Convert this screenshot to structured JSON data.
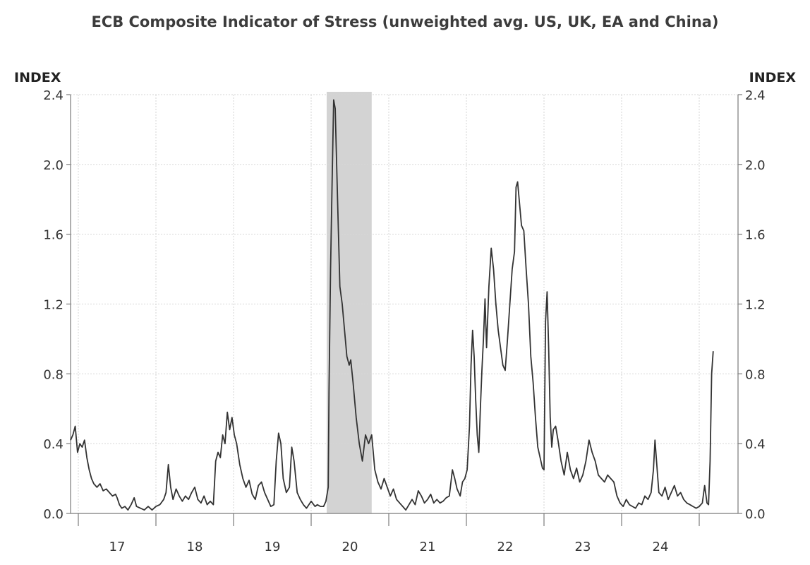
{
  "chart_data": {
    "type": "line",
    "title": "ECB Composite Indicator of Stress (unweighted avg. US, UK, EA and China)",
    "ylabel_left": "INDEX",
    "ylabel_right": "INDEX",
    "ylim": [
      0,
      2.4
    ],
    "yticks": [
      "0.0",
      "0.4",
      "0.8",
      "1.2",
      "1.6",
      "2.0",
      "2.4"
    ],
    "xlim": [
      2016.4,
      2025.0
    ],
    "x_tick_positions": [
      2016.5,
      2017.5,
      2018.5,
      2019.5,
      2020.5,
      2021.5,
      2022.5,
      2023.5,
      2024.5
    ],
    "x_category_labels": [
      "17",
      "18",
      "19",
      "20",
      "21",
      "22",
      "23",
      "24"
    ],
    "x_label_positions": [
      2017.0,
      2018.0,
      2019.0,
      2020.0,
      2021.0,
      2022.0,
      2023.0,
      2024.0
    ],
    "grid": true,
    "shaded_region": [
      2019.7,
      2020.28
    ],
    "series": [
      {
        "points": [
          [
            2016.4,
            0.42
          ],
          [
            2016.43,
            0.45
          ],
          [
            2016.46,
            0.5
          ],
          [
            2016.49,
            0.35
          ],
          [
            2016.52,
            0.4
          ],
          [
            2016.55,
            0.38
          ],
          [
            2016.58,
            0.42
          ],
          [
            2016.61,
            0.32
          ],
          [
            2016.64,
            0.25
          ],
          [
            2016.67,
            0.2
          ],
          [
            2016.7,
            0.17
          ],
          [
            2016.74,
            0.15
          ],
          [
            2016.78,
            0.17
          ],
          [
            2016.82,
            0.13
          ],
          [
            2016.86,
            0.14
          ],
          [
            2016.9,
            0.12
          ],
          [
            2016.94,
            0.1
          ],
          [
            2016.98,
            0.11
          ],
          [
            2017.0,
            0.09
          ],
          [
            2017.03,
            0.05
          ],
          [
            2017.06,
            0.03
          ],
          [
            2017.1,
            0.04
          ],
          [
            2017.14,
            0.02
          ],
          [
            2017.18,
            0.05
          ],
          [
            2017.22,
            0.09
          ],
          [
            2017.25,
            0.04
          ],
          [
            2017.3,
            0.03
          ],
          [
            2017.35,
            0.02
          ],
          [
            2017.4,
            0.04
          ],
          [
            2017.45,
            0.02
          ],
          [
            2017.5,
            0.04
          ],
          [
            2017.55,
            0.05
          ],
          [
            2017.6,
            0.08
          ],
          [
            2017.63,
            0.12
          ],
          [
            2017.66,
            0.28
          ],
          [
            2017.69,
            0.15
          ],
          [
            2017.72,
            0.08
          ],
          [
            2017.76,
            0.14
          ],
          [
            2017.8,
            0.1
          ],
          [
            2017.84,
            0.07
          ],
          [
            2017.88,
            0.1
          ],
          [
            2017.92,
            0.08
          ],
          [
            2017.96,
            0.12
          ],
          [
            2018.0,
            0.15
          ],
          [
            2018.04,
            0.08
          ],
          [
            2018.08,
            0.06
          ],
          [
            2018.12,
            0.1
          ],
          [
            2018.16,
            0.05
          ],
          [
            2018.2,
            0.07
          ],
          [
            2018.24,
            0.05
          ],
          [
            2018.27,
            0.3
          ],
          [
            2018.3,
            0.35
          ],
          [
            2018.33,
            0.32
          ],
          [
            2018.36,
            0.45
          ],
          [
            2018.39,
            0.4
          ],
          [
            2018.42,
            0.58
          ],
          [
            2018.45,
            0.48
          ],
          [
            2018.48,
            0.55
          ],
          [
            2018.51,
            0.45
          ],
          [
            2018.54,
            0.4
          ],
          [
            2018.58,
            0.28
          ],
          [
            2018.62,
            0.2
          ],
          [
            2018.66,
            0.15
          ],
          [
            2018.7,
            0.19
          ],
          [
            2018.74,
            0.11
          ],
          [
            2018.78,
            0.08
          ],
          [
            2018.82,
            0.16
          ],
          [
            2018.86,
            0.18
          ],
          [
            2018.9,
            0.12
          ],
          [
            2018.94,
            0.08
          ],
          [
            2018.98,
            0.04
          ],
          [
            2019.02,
            0.05
          ],
          [
            2019.05,
            0.3
          ],
          [
            2019.08,
            0.46
          ],
          [
            2019.11,
            0.4
          ],
          [
            2019.14,
            0.2
          ],
          [
            2019.18,
            0.12
          ],
          [
            2019.22,
            0.15
          ],
          [
            2019.25,
            0.38
          ],
          [
            2019.28,
            0.3
          ],
          [
            2019.32,
            0.12
          ],
          [
            2019.36,
            0.08
          ],
          [
            2019.4,
            0.05
          ],
          [
            2019.44,
            0.03
          ],
          [
            2019.5,
            0.07
          ],
          [
            2019.55,
            0.04
          ],
          [
            2019.58,
            0.05
          ],
          [
            2019.62,
            0.04
          ],
          [
            2019.66,
            0.04
          ],
          [
            2019.69,
            0.07
          ],
          [
            2019.72,
            0.15
          ],
          [
            2019.73,
            0.7
          ],
          [
            2019.75,
            1.4
          ],
          [
            2019.77,
            1.9
          ],
          [
            2019.79,
            2.37
          ],
          [
            2019.81,
            2.32
          ],
          [
            2019.84,
            1.8
          ],
          [
            2019.87,
            1.3
          ],
          [
            2019.9,
            1.2
          ],
          [
            2019.93,
            1.05
          ],
          [
            2019.96,
            0.9
          ],
          [
            2019.99,
            0.85
          ],
          [
            2020.01,
            0.88
          ],
          [
            2020.04,
            0.75
          ],
          [
            2020.08,
            0.55
          ],
          [
            2020.12,
            0.4
          ],
          [
            2020.16,
            0.3
          ],
          [
            2020.2,
            0.45
          ],
          [
            2020.24,
            0.4
          ],
          [
            2020.28,
            0.45
          ],
          [
            2020.32,
            0.25
          ],
          [
            2020.36,
            0.18
          ],
          [
            2020.4,
            0.14
          ],
          [
            2020.44,
            0.2
          ],
          [
            2020.48,
            0.15
          ],
          [
            2020.52,
            0.1
          ],
          [
            2020.56,
            0.14
          ],
          [
            2020.6,
            0.08
          ],
          [
            2020.64,
            0.06
          ],
          [
            2020.68,
            0.04
          ],
          [
            2020.72,
            0.02
          ],
          [
            2020.76,
            0.05
          ],
          [
            2020.8,
            0.08
          ],
          [
            2020.84,
            0.05
          ],
          [
            2020.88,
            0.13
          ],
          [
            2020.92,
            0.1
          ],
          [
            2020.96,
            0.06
          ],
          [
            2021.0,
            0.08
          ],
          [
            2021.04,
            0.11
          ],
          [
            2021.08,
            0.06
          ],
          [
            2021.12,
            0.08
          ],
          [
            2021.16,
            0.06
          ],
          [
            2021.2,
            0.07
          ],
          [
            2021.24,
            0.09
          ],
          [
            2021.28,
            0.1
          ],
          [
            2021.32,
            0.25
          ],
          [
            2021.35,
            0.2
          ],
          [
            2021.38,
            0.14
          ],
          [
            2021.42,
            0.1
          ],
          [
            2021.45,
            0.18
          ],
          [
            2021.48,
            0.2
          ],
          [
            2021.51,
            0.25
          ],
          [
            2021.54,
            0.5
          ],
          [
            2021.56,
            0.85
          ],
          [
            2021.58,
            1.05
          ],
          [
            2021.6,
            0.9
          ],
          [
            2021.62,
            0.65
          ],
          [
            2021.64,
            0.45
          ],
          [
            2021.66,
            0.35
          ],
          [
            2021.68,
            0.6
          ],
          [
            2021.7,
            0.82
          ],
          [
            2021.72,
            1.0
          ],
          [
            2021.74,
            1.23
          ],
          [
            2021.76,
            0.95
          ],
          [
            2021.79,
            1.3
          ],
          [
            2021.82,
            1.52
          ],
          [
            2021.85,
            1.4
          ],
          [
            2021.88,
            1.2
          ],
          [
            2021.91,
            1.05
          ],
          [
            2021.94,
            0.95
          ],
          [
            2021.97,
            0.85
          ],
          [
            2022.0,
            0.82
          ],
          [
            2022.03,
            1.0
          ],
          [
            2022.06,
            1.2
          ],
          [
            2022.09,
            1.4
          ],
          [
            2022.12,
            1.5
          ],
          [
            2022.14,
            1.87
          ],
          [
            2022.16,
            1.9
          ],
          [
            2022.18,
            1.8
          ],
          [
            2022.21,
            1.65
          ],
          [
            2022.24,
            1.62
          ],
          [
            2022.27,
            1.4
          ],
          [
            2022.3,
            1.2
          ],
          [
            2022.33,
            0.9
          ],
          [
            2022.36,
            0.75
          ],
          [
            2022.39,
            0.55
          ],
          [
            2022.42,
            0.38
          ],
          [
            2022.45,
            0.32
          ],
          [
            2022.48,
            0.26
          ],
          [
            2022.5,
            0.25
          ],
          [
            2022.52,
            1.1
          ],
          [
            2022.54,
            1.27
          ],
          [
            2022.56,
            0.95
          ],
          [
            2022.58,
            0.55
          ],
          [
            2022.6,
            0.38
          ],
          [
            2022.62,
            0.48
          ],
          [
            2022.65,
            0.5
          ],
          [
            2022.68,
            0.42
          ],
          [
            2022.72,
            0.3
          ],
          [
            2022.76,
            0.22
          ],
          [
            2022.8,
            0.35
          ],
          [
            2022.84,
            0.25
          ],
          [
            2022.88,
            0.2
          ],
          [
            2022.92,
            0.26
          ],
          [
            2022.96,
            0.18
          ],
          [
            2023.0,
            0.22
          ],
          [
            2023.04,
            0.3
          ],
          [
            2023.08,
            0.42
          ],
          [
            2023.12,
            0.35
          ],
          [
            2023.16,
            0.3
          ],
          [
            2023.2,
            0.22
          ],
          [
            2023.24,
            0.2
          ],
          [
            2023.28,
            0.18
          ],
          [
            2023.32,
            0.22
          ],
          [
            2023.36,
            0.2
          ],
          [
            2023.4,
            0.18
          ],
          [
            2023.44,
            0.1
          ],
          [
            2023.48,
            0.06
          ],
          [
            2023.52,
            0.04
          ],
          [
            2023.56,
            0.08
          ],
          [
            2023.6,
            0.05
          ],
          [
            2023.64,
            0.04
          ],
          [
            2023.68,
            0.03
          ],
          [
            2023.72,
            0.06
          ],
          [
            2023.76,
            0.05
          ],
          [
            2023.8,
            0.1
          ],
          [
            2023.84,
            0.08
          ],
          [
            2023.88,
            0.12
          ],
          [
            2023.91,
            0.25
          ],
          [
            2023.93,
            0.42
          ],
          [
            2023.95,
            0.3
          ],
          [
            2023.98,
            0.12
          ],
          [
            2024.02,
            0.1
          ],
          [
            2024.06,
            0.15
          ],
          [
            2024.1,
            0.08
          ],
          [
            2024.14,
            0.12
          ],
          [
            2024.18,
            0.16
          ],
          [
            2024.22,
            0.1
          ],
          [
            2024.26,
            0.12
          ],
          [
            2024.3,
            0.08
          ],
          [
            2024.34,
            0.06
          ],
          [
            2024.38,
            0.05
          ],
          [
            2024.42,
            0.04
          ],
          [
            2024.46,
            0.03
          ],
          [
            2024.5,
            0.04
          ],
          [
            2024.54,
            0.06
          ],
          [
            2024.57,
            0.16
          ],
          [
            2024.6,
            0.06
          ],
          [
            2024.62,
            0.05
          ],
          [
            2024.64,
            0.3
          ],
          [
            2024.66,
            0.8
          ],
          [
            2024.68,
            0.93
          ]
        ]
      }
    ]
  }
}
